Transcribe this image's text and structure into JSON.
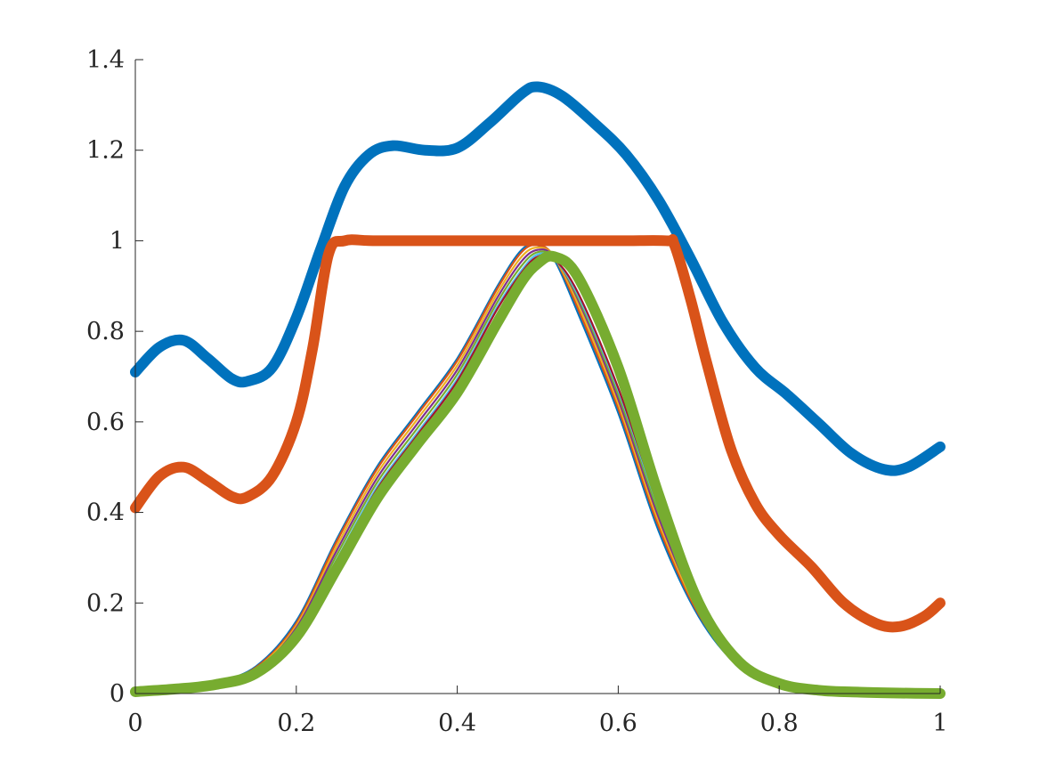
{
  "chart_data": {
    "type": "line",
    "title": "",
    "xlabel": "",
    "ylabel": "",
    "xlim": [
      0,
      1
    ],
    "ylim": [
      0,
      1.4
    ],
    "grid": false,
    "x_ticks": [
      0,
      0.2,
      0.4,
      0.6,
      0.8,
      1
    ],
    "x_tick_labels": [
      "0",
      "0.2",
      "0.4",
      "0.6",
      "0.8",
      "1"
    ],
    "y_ticks": [
      0,
      0.2,
      0.4,
      0.6,
      0.8,
      1,
      1.2,
      1.4
    ],
    "y_tick_labels": [
      "0",
      "0.2",
      "0.4",
      "0.6",
      "0.8",
      "1",
      "1.2",
      "1.4"
    ],
    "series": [
      {
        "color": "#0072BD",
        "width": "thick",
        "x": [
          0,
          0.03,
          0.06,
          0.09,
          0.12,
          0.14,
          0.17,
          0.2,
          0.23,
          0.26,
          0.29,
          0.32,
          0.36,
          0.4,
          0.44,
          0.48,
          0.5,
          0.53,
          0.57,
          0.61,
          0.65,
          0.69,
          0.73,
          0.77,
          0.81,
          0.85,
          0.89,
          0.93,
          0.96,
          1
        ],
        "y": [
          0.71,
          0.765,
          0.78,
          0.74,
          0.695,
          0.69,
          0.72,
          0.83,
          0.98,
          1.12,
          1.19,
          1.21,
          1.2,
          1.205,
          1.26,
          1.325,
          1.34,
          1.32,
          1.26,
          1.19,
          1.09,
          0.96,
          0.82,
          0.72,
          0.66,
          0.595,
          0.53,
          0.495,
          0.5,
          0.545
        ]
      },
      {
        "color": "#D95319",
        "width": "thick",
        "x": [
          0,
          0.03,
          0.06,
          0.09,
          0.12,
          0.14,
          0.17,
          0.2,
          0.22,
          0.24,
          0.26,
          0.3,
          0.4,
          0.5,
          0.6,
          0.66,
          0.67,
          0.69,
          0.71,
          0.74,
          0.77,
          0.8,
          0.84,
          0.88,
          0.92,
          0.95,
          0.98,
          1
        ],
        "y": [
          0.41,
          0.48,
          0.5,
          0.47,
          0.435,
          0.435,
          0.48,
          0.6,
          0.76,
          0.97,
          1.0,
          1.0,
          1.0,
          1.0,
          1.0,
          1.0,
          0.99,
          0.87,
          0.73,
          0.54,
          0.42,
          0.35,
          0.28,
          0.2,
          0.155,
          0.148,
          0.17,
          0.2
        ]
      },
      {
        "color": "#0072BD",
        "width": "thin",
        "x": [
          0,
          0.05,
          0.1,
          0.15,
          0.2,
          0.25,
          0.3,
          0.35,
          0.4,
          0.45,
          0.48,
          0.5,
          0.52,
          0.55,
          0.6,
          0.65,
          0.7,
          0.75,
          0.8,
          0.85,
          0.9,
          0.95,
          1
        ],
        "y": [
          0.005,
          0.012,
          0.025,
          0.06,
          0.16,
          0.34,
          0.5,
          0.62,
          0.74,
          0.9,
          0.98,
          0.99,
          0.96,
          0.84,
          0.62,
          0.36,
          0.17,
          0.06,
          0.02,
          0.007,
          0.003,
          0.001,
          0.0
        ]
      },
      {
        "color": "#D95319",
        "width": "thin",
        "x": [
          0,
          0.05,
          0.1,
          0.15,
          0.2,
          0.25,
          0.3,
          0.35,
          0.4,
          0.45,
          0.48,
          0.5,
          0.52,
          0.55,
          0.6,
          0.65,
          0.7,
          0.75,
          0.8,
          0.85,
          0.9,
          0.95,
          1
        ],
        "y": [
          0.005,
          0.012,
          0.024,
          0.058,
          0.155,
          0.335,
          0.495,
          0.615,
          0.735,
          0.895,
          0.975,
          0.99,
          0.965,
          0.85,
          0.63,
          0.37,
          0.175,
          0.062,
          0.02,
          0.007,
          0.003,
          0.001,
          0.0
        ]
      },
      {
        "color": "#EDB120",
        "width": "thin",
        "x": [
          0,
          0.05,
          0.1,
          0.15,
          0.2,
          0.25,
          0.3,
          0.35,
          0.4,
          0.45,
          0.48,
          0.5,
          0.52,
          0.55,
          0.6,
          0.65,
          0.7,
          0.75,
          0.8,
          0.85,
          0.9,
          0.95,
          1
        ],
        "y": [
          0.005,
          0.011,
          0.023,
          0.055,
          0.15,
          0.325,
          0.485,
          0.605,
          0.725,
          0.885,
          0.965,
          0.985,
          0.965,
          0.86,
          0.64,
          0.38,
          0.18,
          0.064,
          0.021,
          0.007,
          0.003,
          0.001,
          0.0
        ]
      },
      {
        "color": "#7E2F8E",
        "width": "thin",
        "x": [
          0,
          0.05,
          0.1,
          0.15,
          0.2,
          0.25,
          0.3,
          0.35,
          0.4,
          0.45,
          0.48,
          0.5,
          0.52,
          0.55,
          0.6,
          0.65,
          0.7,
          0.75,
          0.8,
          0.85,
          0.9,
          0.95,
          1
        ],
        "y": [
          0.005,
          0.011,
          0.022,
          0.052,
          0.145,
          0.315,
          0.475,
          0.595,
          0.715,
          0.875,
          0.955,
          0.98,
          0.965,
          0.87,
          0.65,
          0.39,
          0.185,
          0.066,
          0.022,
          0.007,
          0.003,
          0.001,
          0.0
        ]
      },
      {
        "color": "#77AC30",
        "width": "thin",
        "x": [
          0,
          0.05,
          0.1,
          0.15,
          0.2,
          0.25,
          0.3,
          0.35,
          0.4,
          0.45,
          0.48,
          0.5,
          0.52,
          0.55,
          0.6,
          0.65,
          0.7,
          0.75,
          0.8,
          0.85,
          0.9,
          0.95,
          1
        ],
        "y": [
          0.004,
          0.011,
          0.022,
          0.05,
          0.14,
          0.305,
          0.465,
          0.585,
          0.705,
          0.865,
          0.945,
          0.975,
          0.962,
          0.875,
          0.66,
          0.4,
          0.19,
          0.068,
          0.022,
          0.007,
          0.003,
          0.001,
          0.0
        ]
      },
      {
        "color": "#4DBEEE",
        "width": "thin",
        "x": [
          0,
          0.05,
          0.1,
          0.15,
          0.2,
          0.25,
          0.3,
          0.35,
          0.4,
          0.45,
          0.48,
          0.5,
          0.52,
          0.55,
          0.6,
          0.65,
          0.7,
          0.75,
          0.8,
          0.85,
          0.9,
          0.95,
          1
        ],
        "y": [
          0.004,
          0.01,
          0.021,
          0.048,
          0.135,
          0.295,
          0.455,
          0.575,
          0.695,
          0.855,
          0.935,
          0.97,
          0.96,
          0.88,
          0.67,
          0.41,
          0.195,
          0.07,
          0.023,
          0.007,
          0.003,
          0.001,
          0.0
        ]
      },
      {
        "color": "#A2142F",
        "width": "thin",
        "x": [
          0,
          0.05,
          0.1,
          0.15,
          0.2,
          0.25,
          0.3,
          0.35,
          0.4,
          0.45,
          0.48,
          0.5,
          0.52,
          0.55,
          0.6,
          0.65,
          0.7,
          0.75,
          0.8,
          0.85,
          0.9,
          0.95,
          1
        ],
        "y": [
          0.004,
          0.01,
          0.021,
          0.046,
          0.13,
          0.29,
          0.45,
          0.57,
          0.69,
          0.85,
          0.93,
          0.965,
          0.96,
          0.885,
          0.675,
          0.415,
          0.198,
          0.071,
          0.023,
          0.007,
          0.003,
          0.001,
          0.0
        ]
      },
      {
        "color": "#77AC30",
        "width": "thick",
        "x": [
          0,
          0.05,
          0.1,
          0.15,
          0.2,
          0.25,
          0.3,
          0.35,
          0.4,
          0.45,
          0.48,
          0.5,
          0.52,
          0.55,
          0.6,
          0.65,
          0.7,
          0.75,
          0.8,
          0.85,
          0.9,
          0.95,
          1
        ],
        "y": [
          0.004,
          0.01,
          0.02,
          0.045,
          0.125,
          0.275,
          0.43,
          0.55,
          0.665,
          0.82,
          0.91,
          0.95,
          0.965,
          0.92,
          0.72,
          0.44,
          0.2,
          0.07,
          0.022,
          0.007,
          0.003,
          0.001,
          0.0
        ]
      }
    ]
  }
}
